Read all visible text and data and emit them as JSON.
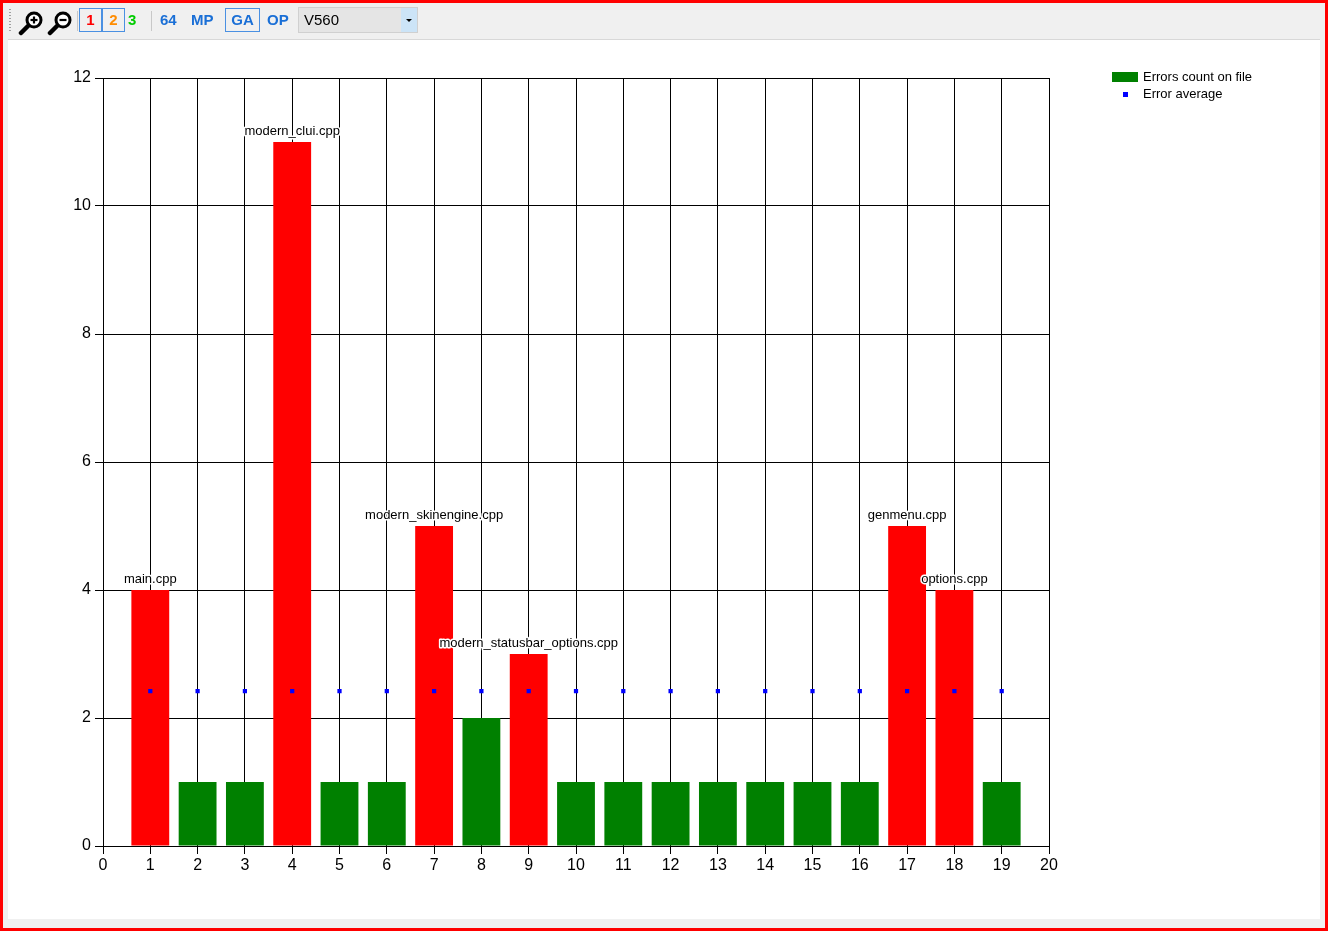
{
  "chart_data": {
    "type": "bar",
    "x": [
      1,
      2,
      3,
      4,
      5,
      6,
      7,
      8,
      9,
      10,
      11,
      12,
      13,
      14,
      15,
      16,
      17,
      18,
      19
    ],
    "xlim": [
      0,
      20
    ],
    "xticks": [
      0,
      1,
      2,
      3,
      4,
      5,
      6,
      7,
      8,
      9,
      10,
      11,
      12,
      13,
      14,
      15,
      16,
      17,
      18,
      19,
      20
    ],
    "ylim": [
      0,
      12
    ],
    "yticks": [
      0,
      2,
      4,
      6,
      8,
      10,
      12
    ],
    "grid": true,
    "legend": "top right",
    "series": [
      {
        "name": "Errors count on file",
        "color": "#008000",
        "colors": [
          "#ff0000",
          "#008000",
          "#008000",
          "#ff0000",
          "#008000",
          "#008000",
          "#ff0000",
          "#008000",
          "#ff0000",
          "#008000",
          "#008000",
          "#008000",
          "#008000",
          "#008000",
          "#008000",
          "#008000",
          "#ff0000",
          "#ff0000",
          "#008000"
        ],
        "values": [
          4,
          1,
          1,
          11,
          1,
          1,
          5,
          2,
          3,
          1,
          1,
          1,
          1,
          1,
          1,
          1,
          5,
          4,
          1
        ],
        "value_labels": [
          "main.cpp",
          null,
          null,
          "modern_clui.cpp",
          null,
          null,
          "modern_skinengine.cpp",
          null,
          "modern_statusbar_options.cpp",
          null,
          null,
          null,
          null,
          null,
          null,
          null,
          "genmenu.cpp",
          "options.cpp",
          null
        ]
      },
      {
        "name": "Error average",
        "type": "scatter",
        "marker": "square",
        "color": "#0000ff",
        "values": [
          2.42,
          2.42,
          2.42,
          2.42,
          2.42,
          2.42,
          2.42,
          2.42,
          2.42,
          2.42,
          2.42,
          2.42,
          2.42,
          2.42,
          2.42,
          2.42,
          2.42,
          2.42,
          2.42
        ]
      }
    ],
    "annotations": [
      "1",
      "2",
      "3",
      "64",
      "MP",
      "GA",
      "OP",
      "V560"
    ]
  }
}
